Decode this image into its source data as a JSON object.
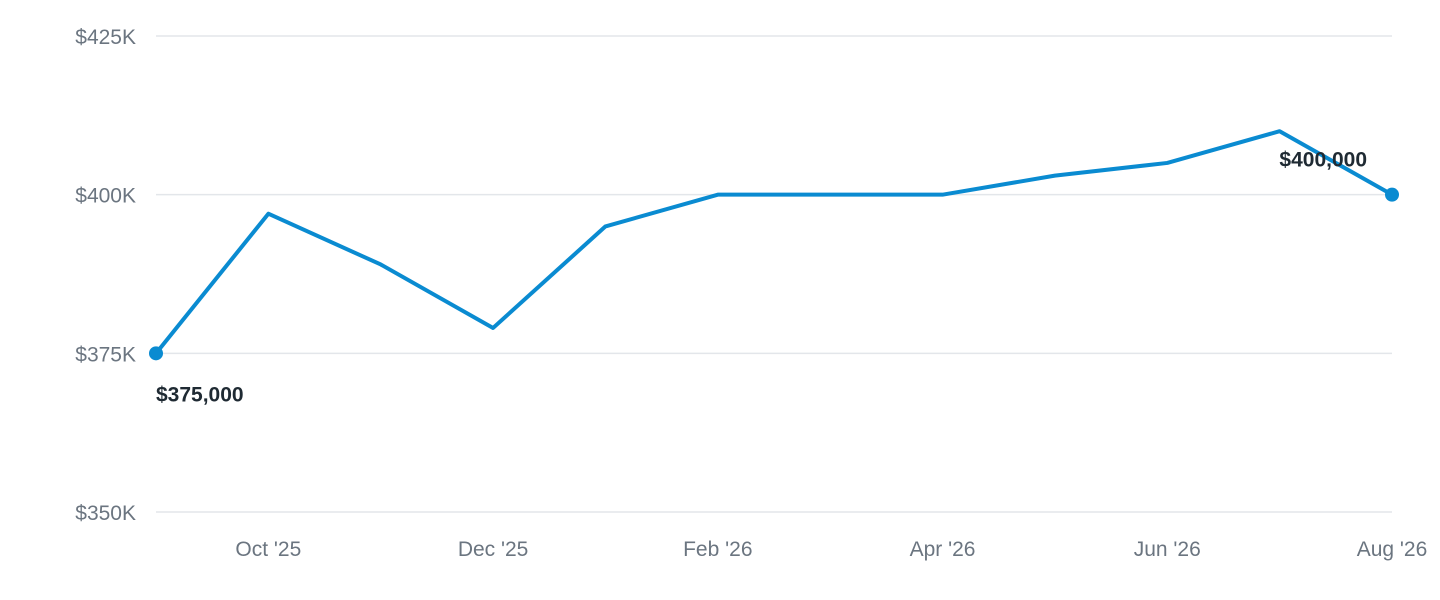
{
  "chart_data": {
    "type": "line",
    "title": "",
    "xlabel": "",
    "ylabel": "",
    "ylim": [
      350000,
      425000
    ],
    "yticks": [
      {
        "value": 350000,
        "label": "$350K"
      },
      {
        "value": 375000,
        "label": "$375K"
      },
      {
        "value": 400000,
        "label": "$400K"
      },
      {
        "value": 425000,
        "label": "$425K"
      }
    ],
    "x": [
      "2025-09",
      "2025-10",
      "2025-11",
      "2025-12",
      "2026-01",
      "2026-02",
      "2026-03",
      "2026-04",
      "2026-05",
      "2026-06",
      "2026-07",
      "2026-08"
    ],
    "xticks": [
      {
        "x": "2025-10",
        "label": "Oct '25"
      },
      {
        "x": "2025-12",
        "label": "Dec '25"
      },
      {
        "x": "2026-02",
        "label": "Feb '26"
      },
      {
        "x": "2026-04",
        "label": "Apr '26"
      },
      {
        "x": "2026-06",
        "label": "Jun '26"
      },
      {
        "x": "2026-08",
        "label": "Aug '26"
      }
    ],
    "series": [
      {
        "values": [
          375000,
          397000,
          389000,
          379000,
          395000,
          400000,
          400000,
          400000,
          403000,
          405000,
          410000,
          400000
        ],
        "color": "#0a8bd1"
      }
    ],
    "annotations": [
      {
        "x": "2025-09",
        "value": 375000,
        "label": "$375,000",
        "placement": "below"
      },
      {
        "x": "2026-08",
        "value": 400000,
        "label": "$400,000",
        "placement": "above"
      }
    ],
    "grid": true,
    "legend": "none"
  }
}
